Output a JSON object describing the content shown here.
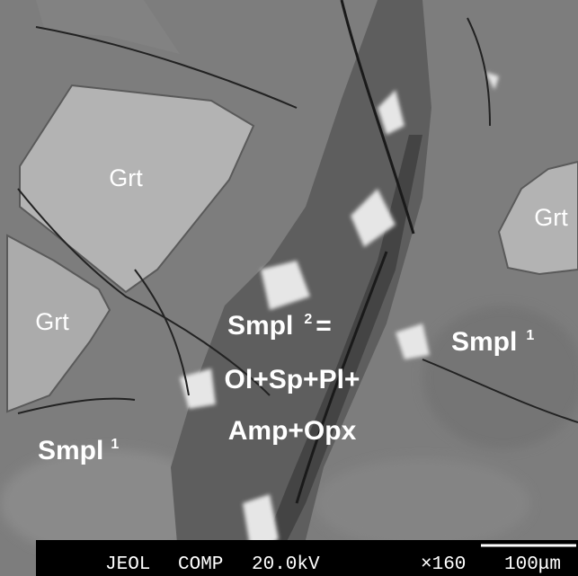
{
  "labels": [
    {
      "text": "Grt"
    },
    {
      "text": "Grt"
    },
    {
      "text": "Grt"
    },
    {
      "text": "Smpl",
      "sup": "1"
    },
    {
      "text": "Smpl",
      "sup": "1"
    },
    {
      "text": "Smpl",
      "sup": "2",
      "suffix": "="
    },
    {
      "text": "Ol+Sp+Pl+"
    },
    {
      "text": "Amp+Opx"
    }
  ],
  "info_bar": {
    "instrument": "JEOL",
    "mode": "COMP",
    "voltage": "20.0kV",
    "magnification": "×160",
    "scale": "100μm"
  }
}
